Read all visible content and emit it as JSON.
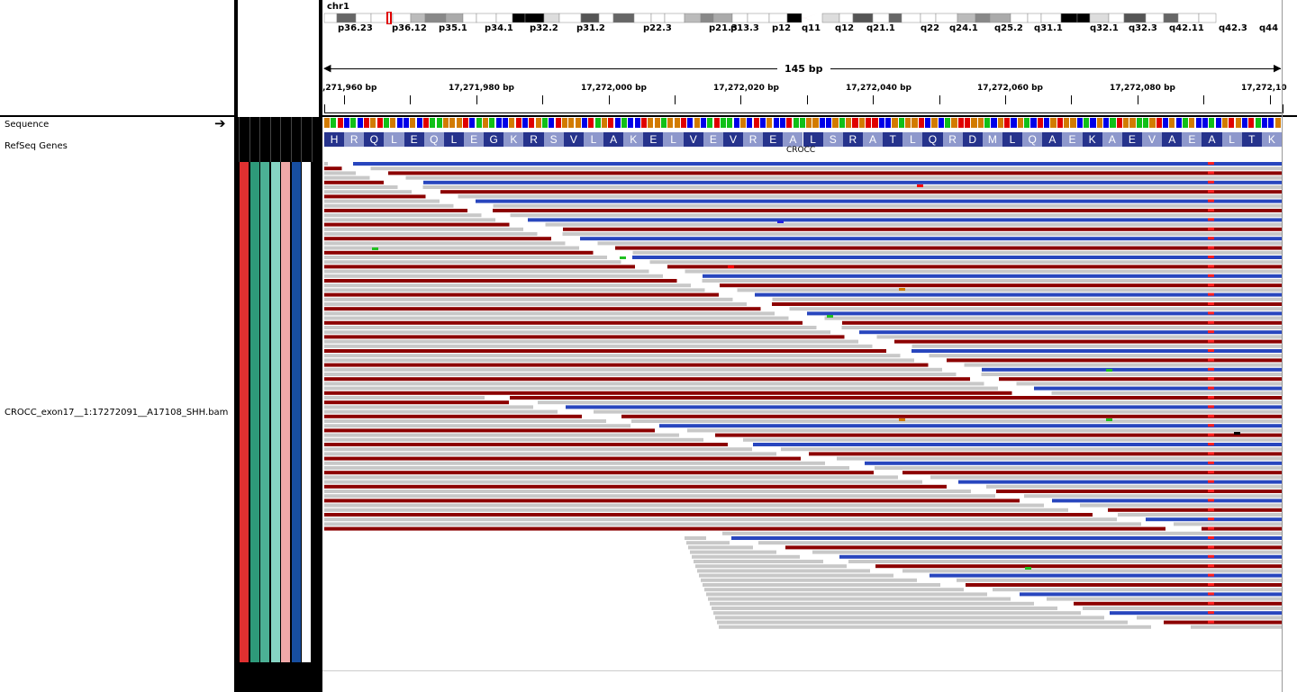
{
  "colors": {
    "A": "#10c018",
    "C": "#0000e8",
    "G": "#d27b00",
    "T": "#e00000",
    "read_gray": "#c8c8c8",
    "read_red": "#8c0000",
    "read_blue": "#2846be",
    "aa_dark": "#26338c",
    "aa_light": "#8e98cc"
  },
  "chromosome": {
    "name": "chr1",
    "bands": [
      "p36.23",
      "p36.12",
      "p35.1",
      "p34.1",
      "p32.2",
      "p31.2",
      "p22.3",
      "p21.3",
      "p13.3",
      "p12",
      "q11",
      "q12",
      "q21.1",
      "q22",
      "q24.1",
      "q25.2",
      "q31.1",
      "q32.1",
      "q32.3",
      "q42.11",
      "q42.3",
      "q44"
    ]
  },
  "ruler": {
    "span_label": "145 bp",
    "tick_labels": [
      ",271,960 bp",
      "17,271,980 bp",
      "17,272,000 bp",
      "17,272,020 bp",
      "17,272,040 bp",
      "17,272,060 bp",
      "17,272,080 bp",
      "17,272,10"
    ]
  },
  "tracks": {
    "sequence": "Sequence",
    "sequence_arrow": "➔",
    "refseq": "RefSeq Genes",
    "bam": "CROCC_exon17__1:17272091__A17108_SHH.bam"
  },
  "sequence_bases": "GATCACTGTAGCCGCTAAGGGTCAGACCGTCTGACTGGGCTAGTCACCTGGAGGTCGCATAACGCTCGCCTAAGGCCGAGTGTTCCGAGGTCGCAGTTGGACGTCGACTCGTGGCACGCATGGAAGTCGCAGCCACGTGCTACCG",
  "amino_acids": [
    "H",
    "R",
    "Q",
    "L",
    "E",
    "Q",
    "L",
    "E",
    "G",
    "K",
    "R",
    "S",
    "V",
    "L",
    "A",
    "K",
    "E",
    "L",
    "V",
    "E",
    "V",
    "R",
    "E",
    "A",
    "L",
    "S",
    "R",
    "A",
    "T",
    "L",
    "Q",
    "R",
    "D",
    "M",
    "L",
    "Q",
    "A",
    "E",
    "K",
    "A",
    "E",
    "V",
    "A",
    "E",
    "A",
    "L",
    "T",
    "K"
  ],
  "gene_name": "CROCC",
  "sample_color_strips": [
    "#e03030",
    "#2e9a7a",
    "#4cb095",
    "#86d4c3",
    "#f0a8a8",
    "#174ea0",
    "#ffffff"
  ]
}
